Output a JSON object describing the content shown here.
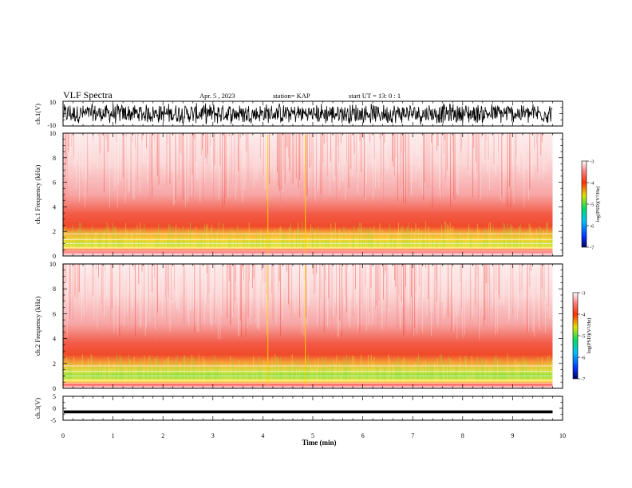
{
  "header": {
    "title": "VLF Spectra",
    "date": "Apr. 5 , 2023",
    "station": "station= KAP",
    "start": "start  UT =   13: 0  : 1"
  },
  "colors": {
    "spectrogram_low": "#0000a0",
    "spectrogram_mid": "#00c000",
    "spectrogram_high": "#ff2020",
    "spectrogram_top": "#ffffff",
    "trace": "#000000"
  },
  "chart_data": [
    {
      "type": "line",
      "title": "",
      "ylabel": "ch.1(V)",
      "xlim": [
        0,
        10
      ],
      "ylim": [
        -10,
        10
      ],
      "y_ticks": [
        "10",
        "-10"
      ],
      "description_values": {
        "amplitude_min": -9,
        "amplitude_max": 9,
        "data_end_min": 9.8
      }
    },
    {
      "type": "heatmap",
      "ylabel": "ch.1 Frequency (kHz)",
      "xlim": [
        0,
        10
      ],
      "ylim": [
        0,
        10
      ],
      "y_ticks": [
        "0",
        "2",
        "4",
        "6",
        "8",
        "10"
      ],
      "colorbar": {
        "label": "log(PSD)(V²/Hz)",
        "range": [
          -7,
          -3
        ],
        "ticks": [
          "-3",
          "-4",
          "-5",
          "-6",
          "-7"
        ]
      },
      "data_end_min": 9.8
    },
    {
      "type": "heatmap",
      "ylabel": "ch.2 Frequency (kHz)",
      "xlim": [
        0,
        10
      ],
      "ylim": [
        0,
        10
      ],
      "y_ticks": [
        "0",
        "2",
        "4",
        "6",
        "8",
        "10"
      ],
      "colorbar": {
        "label": "log(PSD)(V²/Hz)",
        "range": [
          -7,
          -3
        ],
        "ticks": [
          "-3",
          "-4",
          "-5",
          "-6",
          "-7"
        ]
      },
      "data_end_min": 9.8
    },
    {
      "type": "line",
      "ylabel": "ch.3(V)",
      "xlim": [
        0,
        10
      ],
      "ylim": [
        -5,
        5
      ],
      "y_ticks": [
        "5",
        "0",
        "-5"
      ],
      "xlabel": "Time  (min)",
      "x_ticks": [
        "0",
        "1",
        "2",
        "3",
        "4",
        "5",
        "6",
        "7",
        "8",
        "9",
        "10"
      ],
      "description_values": {
        "band_center": -1.5,
        "band_halfwidth": 0.6,
        "data_end_min": 9.8
      }
    }
  ]
}
